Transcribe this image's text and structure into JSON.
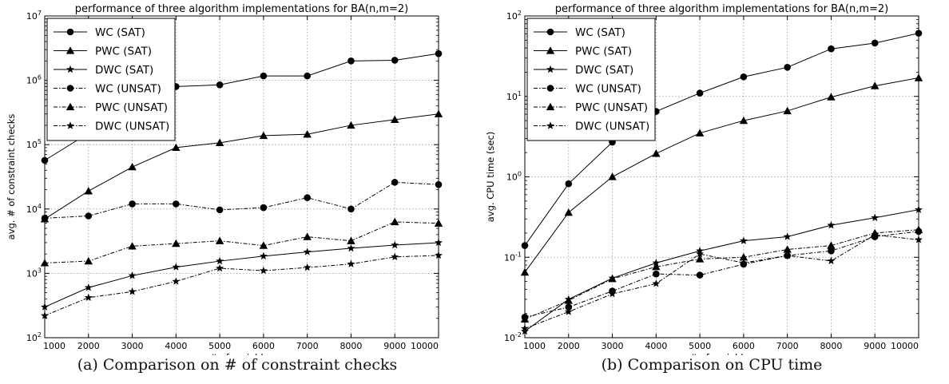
{
  "captions": {
    "a": "(a) Comparison on # of constraint checks",
    "b": "(b) Comparison on CPU time"
  },
  "colors": {
    "line": "#000000",
    "grid": "#9a9a9a",
    "background": "#ffffff"
  },
  "chart_data": [
    {
      "type": "line",
      "title": "performance of three algorithm implementations for BA(n,m=2)",
      "xlabel": "# of variables",
      "ylabel": "avg. # of constraint checks",
      "yscale": "log",
      "xlim": [
        1000,
        10000
      ],
      "ylim": [
        100,
        10000000
      ],
      "x": [
        1000,
        2000,
        3000,
        4000,
        5000,
        6000,
        7000,
        8000,
        9000,
        10000
      ],
      "xticks": [
        "1000",
        "2000",
        "3000",
        "4000",
        "5000",
        "6000",
        "7000",
        "8000",
        "9000",
        "10000"
      ],
      "yticks": [
        {
          "value": 100,
          "base": "10",
          "exp": "2"
        },
        {
          "value": 1000,
          "base": "10",
          "exp": "3"
        },
        {
          "value": 10000,
          "base": "10",
          "exp": "4"
        },
        {
          "value": 100000,
          "base": "10",
          "exp": "5"
        },
        {
          "value": 1000000,
          "base": "10",
          "exp": "6"
        },
        {
          "value": 10000000,
          "base": "10",
          "exp": "7"
        }
      ],
      "grid": true,
      "legend_position": "top-left",
      "series": [
        {
          "name": "WC (SAT)",
          "marker": "circle",
          "dash": "solid",
          "values": [
            57000,
            150000,
            450000,
            800000,
            850000,
            1170000,
            1170000,
            2000000,
            2050000,
            2600000
          ]
        },
        {
          "name": "PWC (SAT)",
          "marker": "triangle",
          "dash": "solid",
          "values": [
            7000,
            19000,
            45000,
            90000,
            107000,
            138000,
            145000,
            200000,
            245000,
            300000
          ]
        },
        {
          "name": "DWC (SAT)",
          "marker": "star",
          "dash": "solid",
          "values": [
            300,
            600,
            920,
            1250,
            1550,
            1850,
            2150,
            2450,
            2750,
            3000
          ]
        },
        {
          "name": "WC (UNSAT)",
          "marker": "circle",
          "dash": "dashdot",
          "values": [
            7200,
            7800,
            12000,
            12000,
            9700,
            10500,
            15000,
            10000,
            26000,
            24000
          ]
        },
        {
          "name": "PWC (UNSAT)",
          "marker": "triangle",
          "dash": "dashdot",
          "values": [
            1450,
            1550,
            2650,
            2900,
            3200,
            2700,
            3700,
            3200,
            6300,
            6000
          ]
        },
        {
          "name": "DWC (UNSAT)",
          "marker": "star",
          "dash": "dashdot",
          "values": [
            220,
            420,
            520,
            750,
            1200,
            1100,
            1230,
            1400,
            1800,
            1900
          ]
        }
      ]
    },
    {
      "type": "line",
      "title": "performance of three algorithm implementations for BA(n,m=2)",
      "xlabel": "# of variables",
      "ylabel": "avg. CPU time (sec)",
      "yscale": "log",
      "xlim": [
        1000,
        10000
      ],
      "ylim": [
        0.01,
        100
      ],
      "x": [
        1000,
        2000,
        3000,
        4000,
        5000,
        6000,
        7000,
        8000,
        9000,
        10000
      ],
      "xticks": [
        "1000",
        "2000",
        "3000",
        "4000",
        "5000",
        "6000",
        "7000",
        "8000",
        "9000",
        "10000"
      ],
      "yticks": [
        {
          "value": 0.01,
          "base": "10",
          "exp": "-2"
        },
        {
          "value": 0.1,
          "base": "10",
          "exp": "-1"
        },
        {
          "value": 1,
          "base": "10",
          "exp": "0"
        },
        {
          "value": 10,
          "base": "10",
          "exp": "1"
        },
        {
          "value": 100,
          "base": "10",
          "exp": "2"
        }
      ],
      "grid": true,
      "legend_position": "top-left",
      "series": [
        {
          "name": "WC (SAT)",
          "marker": "circle",
          "dash": "solid",
          "values": [
            0.14,
            0.82,
            2.7,
            6.5,
            11.0,
            17.5,
            23.0,
            39.0,
            46.0,
            61.0
          ]
        },
        {
          "name": "PWC (SAT)",
          "marker": "triangle",
          "dash": "solid",
          "values": [
            0.065,
            0.36,
            1.0,
            1.95,
            3.5,
            5.0,
            6.6,
            9.8,
            13.5,
            17.0
          ]
        },
        {
          "name": "DWC (SAT)",
          "marker": "star",
          "dash": "solid",
          "values": [
            0.012,
            0.03,
            0.055,
            0.085,
            0.12,
            0.16,
            0.18,
            0.25,
            0.31,
            0.39
          ]
        },
        {
          "name": "WC (UNSAT)",
          "marker": "circle",
          "dash": "dashdot",
          "values": [
            0.018,
            0.024,
            0.038,
            0.062,
            0.06,
            0.082,
            0.105,
            0.12,
            0.18,
            0.21
          ]
        },
        {
          "name": "PWC (UNSAT)",
          "marker": "triangle",
          "dash": "dashdot",
          "values": [
            0.017,
            0.029,
            0.054,
            0.076,
            0.095,
            0.1,
            0.125,
            0.14,
            0.2,
            0.22
          ]
        },
        {
          "name": "DWC (UNSAT)",
          "marker": "star",
          "dash": "dashdot",
          "values": [
            0.013,
            0.021,
            0.035,
            0.047,
            0.11,
            0.085,
            0.105,
            0.09,
            0.19,
            0.165
          ]
        }
      ]
    }
  ]
}
